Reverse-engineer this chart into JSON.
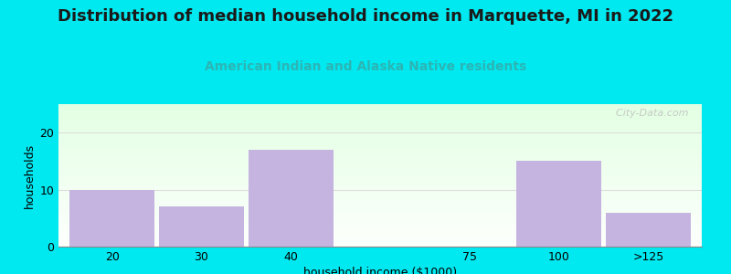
{
  "title": "Distribution of median household income in Marquette, MI in 2022",
  "subtitle": "American Indian and Alaska Native residents",
  "xlabel": "household income ($1000)",
  "ylabel": "households",
  "categories": [
    "20",
    "30",
    "40",
    "75",
    "100",
    ">125"
  ],
  "values": [
    10,
    7,
    17,
    0,
    15,
    6
  ],
  "bar_color": "#c5b3e0",
  "bar_edge_color": "#b8a0d8",
  "background_outer": "#00e8f0",
  "ylim": [
    0,
    25
  ],
  "yticks": [
    0,
    10,
    20
  ],
  "title_fontsize": 13,
  "subtitle_fontsize": 10,
  "subtitle_color": "#2cb5b5",
  "axis_label_fontsize": 9,
  "watermark": "  City-Data.com",
  "bar_positions": [
    0,
    1,
    2,
    4,
    5,
    6
  ],
  "bar_width": 0.95
}
